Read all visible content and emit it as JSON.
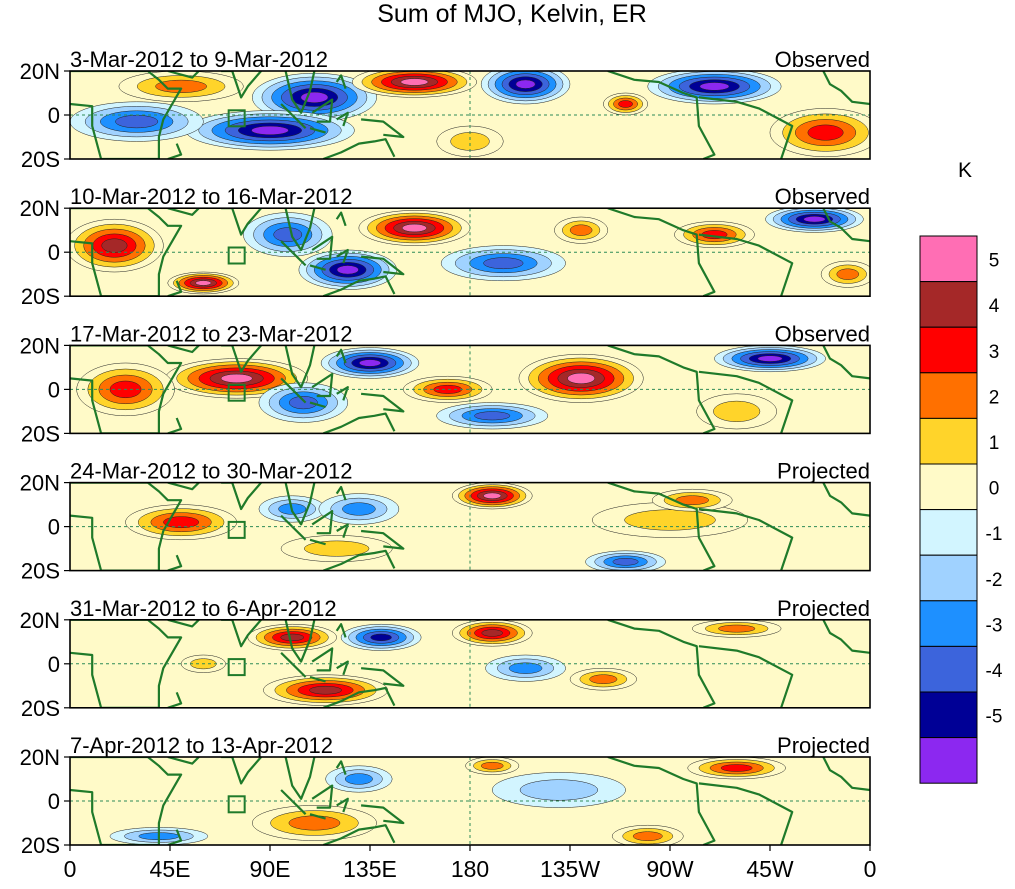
{
  "chart_data": {
    "type": "heatmap",
    "title": "Sum of MJO, Kelvin, ER",
    "units": "K",
    "colorbar": {
      "levels": [
        5,
        4,
        3,
        2,
        1,
        0,
        -1,
        -2,
        -3,
        -4,
        -5
      ],
      "colors": [
        "#ff6eb4",
        "#a52828",
        "#ff0000",
        "#ff7000",
        "#ffd42a",
        "#fffac8",
        "#d2f5ff",
        "#a0d2ff",
        "#1e90ff",
        "#3c64dc",
        "#000096",
        "#8c28f0"
      ]
    },
    "x_ticks": [
      "0",
      "45E",
      "90E",
      "135E",
      "180",
      "135W",
      "90W",
      "45W",
      "0"
    ],
    "y_ticks": [
      "20N",
      "0",
      "20S"
    ],
    "ylim": [
      -20,
      20
    ],
    "xlim": [
      0,
      360
    ],
    "panels": [
      {
        "period": "3-Mar-2012 to 9-Mar-2012",
        "status": "Observed",
        "anomalies": [
          {
            "lon": 205,
            "lat": 14,
            "value": -5.5,
            "rx": 20,
            "ry": 9
          },
          {
            "lon": 290,
            "lat": 13,
            "value": -5.5,
            "rx": 30,
            "ry": 8
          },
          {
            "lon": 110,
            "lat": 8,
            "value": -5.5,
            "rx": 28,
            "ry": 11
          },
          {
            "lon": 90,
            "lat": -7,
            "value": -5.5,
            "rx": 38,
            "ry": 9
          },
          {
            "lon": 30,
            "lat": -3,
            "value": -3.5,
            "rx": 30,
            "ry": 9
          },
          {
            "lon": 155,
            "lat": 15,
            "value": 5.5,
            "rx": 28,
            "ry": 7
          },
          {
            "lon": 250,
            "lat": 5,
            "value": 3.5,
            "rx": 10,
            "ry": 5
          },
          {
            "lon": 340,
            "lat": -8,
            "value": 3.5,
            "rx": 25,
            "ry": 11
          },
          {
            "lon": 180,
            "lat": -12,
            "value": 1.5,
            "rx": 15,
            "ry": 7
          },
          {
            "lon": 50,
            "lat": 13,
            "value": 2.5,
            "rx": 28,
            "ry": 7
          }
        ]
      },
      {
        "period": "10-Mar-2012 to 16-Mar-2012",
        "status": "Observed",
        "anomalies": [
          {
            "lon": 20,
            "lat": 3,
            "value": 4.5,
            "rx": 22,
            "ry": 12
          },
          {
            "lon": 155,
            "lat": 11,
            "value": 5.5,
            "rx": 25,
            "ry": 8
          },
          {
            "lon": 230,
            "lat": 10,
            "value": 2.5,
            "rx": 12,
            "ry": 6
          },
          {
            "lon": 290,
            "lat": 8,
            "value": 3.5,
            "rx": 18,
            "ry": 6
          },
          {
            "lon": 60,
            "lat": -14,
            "value": 5.5,
            "rx": 16,
            "ry": 5
          },
          {
            "lon": 125,
            "lat": -8,
            "value": -5.5,
            "rx": 22,
            "ry": 9
          },
          {
            "lon": 335,
            "lat": 15,
            "value": -5.5,
            "rx": 22,
            "ry": 6
          },
          {
            "lon": 195,
            "lat": -5,
            "value": -3.5,
            "rx": 28,
            "ry": 8
          },
          {
            "lon": 98,
            "lat": 8,
            "value": -3.5,
            "rx": 20,
            "ry": 10
          },
          {
            "lon": 350,
            "lat": -10,
            "value": 2.5,
            "rx": 12,
            "ry": 6
          }
        ]
      },
      {
        "period": "17-Mar-2012 to 23-Mar-2012",
        "status": "Observed",
        "anomalies": [
          {
            "lon": 75,
            "lat": 5,
            "value": 5.5,
            "rx": 32,
            "ry": 9
          },
          {
            "lon": 25,
            "lat": 0,
            "value": 3.5,
            "rx": 22,
            "ry": 12
          },
          {
            "lon": 230,
            "lat": 5,
            "value": 5.5,
            "rx": 28,
            "ry": 11
          },
          {
            "lon": 135,
            "lat": 12,
            "value": -5.5,
            "rx": 22,
            "ry": 7
          },
          {
            "lon": 315,
            "lat": 14,
            "value": -5.5,
            "rx": 25,
            "ry": 6
          },
          {
            "lon": 105,
            "lat": -6,
            "value": -3.5,
            "rx": 20,
            "ry": 9
          },
          {
            "lon": 190,
            "lat": -12,
            "value": -3.5,
            "rx": 25,
            "ry": 6
          },
          {
            "lon": 170,
            "lat": 0,
            "value": 3.5,
            "rx": 20,
            "ry": 6
          },
          {
            "lon": 300,
            "lat": -10,
            "value": 1.5,
            "rx": 18,
            "ry": 8
          }
        ]
      },
      {
        "period": "24-Mar-2012 to 30-Mar-2012",
        "status": "Projected",
        "anomalies": [
          {
            "lon": 50,
            "lat": 2,
            "value": 3.5,
            "rx": 25,
            "ry": 8
          },
          {
            "lon": 190,
            "lat": 14,
            "value": 5.5,
            "rx": 18,
            "ry": 6
          },
          {
            "lon": 100,
            "lat": 8,
            "value": -2.5,
            "rx": 15,
            "ry": 6
          },
          {
            "lon": 130,
            "lat": 8,
            "value": -2.5,
            "rx": 18,
            "ry": 7
          },
          {
            "lon": 270,
            "lat": 3,
            "value": 1.5,
            "rx": 35,
            "ry": 8
          },
          {
            "lon": 250,
            "lat": -16,
            "value": -3.5,
            "rx": 18,
            "ry": 5
          },
          {
            "lon": 280,
            "lat": 12,
            "value": 2.5,
            "rx": 18,
            "ry": 5
          },
          {
            "lon": 120,
            "lat": -10,
            "value": 1.5,
            "rx": 25,
            "ry": 6
          }
        ]
      },
      {
        "period": "31-Mar-2012 to 6-Apr-2012",
        "status": "Projected",
        "anomalies": [
          {
            "lon": 100,
            "lat": 12,
            "value": 4.5,
            "rx": 20,
            "ry": 6
          },
          {
            "lon": 190,
            "lat": 14,
            "value": 4.5,
            "rx": 18,
            "ry": 6
          },
          {
            "lon": 140,
            "lat": 12,
            "value": -4.5,
            "rx": 18,
            "ry": 6
          },
          {
            "lon": 115,
            "lat": -12,
            "value": 4.5,
            "rx": 28,
            "ry": 7
          },
          {
            "lon": 240,
            "lat": -7,
            "value": 2.5,
            "rx": 15,
            "ry": 5
          },
          {
            "lon": 300,
            "lat": 16,
            "value": 2.5,
            "rx": 20,
            "ry": 4
          },
          {
            "lon": 205,
            "lat": -2,
            "value": -2.5,
            "rx": 18,
            "ry": 6
          },
          {
            "lon": 60,
            "lat": 0,
            "value": 1.5,
            "rx": 10,
            "ry": 4
          }
        ]
      },
      {
        "period": "7-Apr-2012 to 13-Apr-2012",
        "status": "Projected",
        "anomalies": [
          {
            "lon": 300,
            "lat": 15,
            "value": 3.5,
            "rx": 22,
            "ry": 5
          },
          {
            "lon": 110,
            "lat": -10,
            "value": 2.5,
            "rx": 28,
            "ry": 8
          },
          {
            "lon": 130,
            "lat": 10,
            "value": -2.5,
            "rx": 15,
            "ry": 6
          },
          {
            "lon": 190,
            "lat": 16,
            "value": 2.5,
            "rx": 12,
            "ry": 4
          },
          {
            "lon": 260,
            "lat": -16,
            "value": 2.5,
            "rx": 16,
            "ry": 5
          },
          {
            "lon": 40,
            "lat": -16,
            "value": -2.5,
            "rx": 22,
            "ry": 4
          },
          {
            "lon": 220,
            "lat": 5,
            "value": -1.5,
            "rx": 30,
            "ry": 8
          }
        ]
      }
    ]
  }
}
